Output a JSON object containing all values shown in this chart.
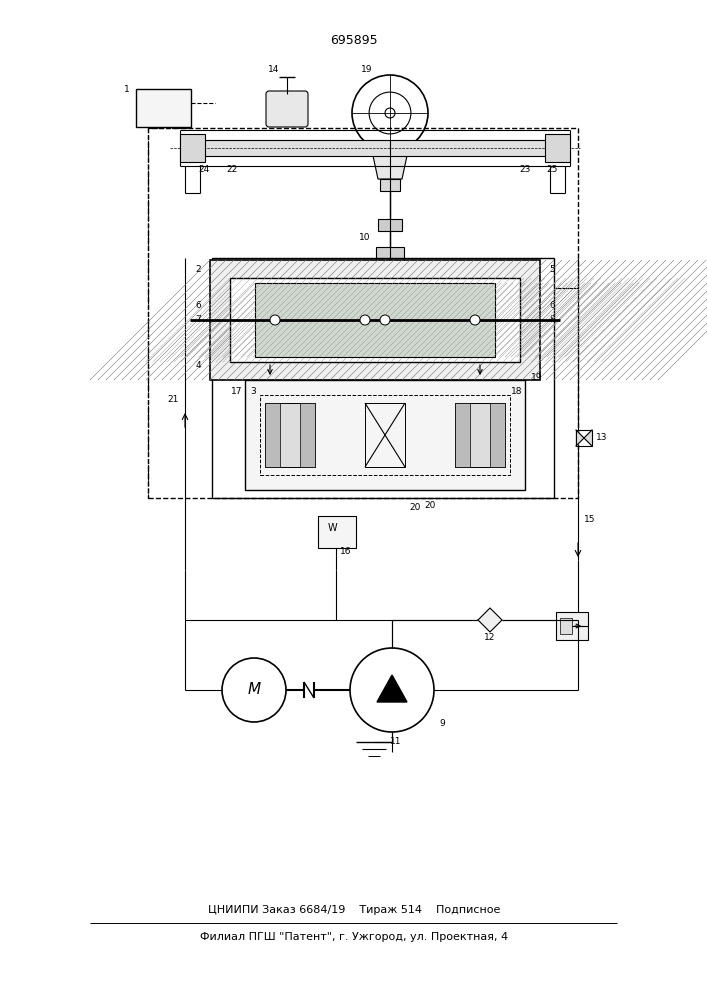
{
  "patent_number": "695895",
  "bg_color": "#ffffff",
  "lc": "#000000",
  "figsize": [
    7.07,
    10.0
  ],
  "dpi": 100,
  "bottom_text1": "ЦНИИПИ Заказ 6684/19    Тираж 514    Подписное",
  "bottom_text2": "Филиал ПГШ \"Патент\", г. Ужгород, ул. Проектная, 4",
  "title": "695895",
  "scale": 1.0
}
